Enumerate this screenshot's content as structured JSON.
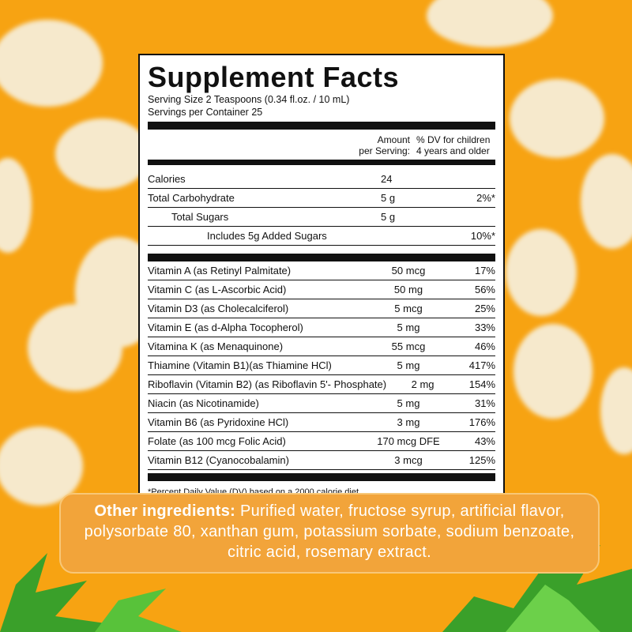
{
  "panel": {
    "title": "Supplement Facts",
    "serving_size": "Serving Size 2 Teaspoons (0.34 fl.oz. / 10 mL)",
    "servings": "Servings per Container 25",
    "header_amount": [
      "Amount",
      "per Serving:"
    ],
    "header_dv": [
      "% DV for children",
      "4 years and older"
    ],
    "main_rows": [
      {
        "name": "Calories",
        "amount": "24"
      },
      {
        "name": "Total Carbohydrate",
        "amount": "5 g",
        "dv": "2%*"
      },
      {
        "name": "Total Sugars",
        "amount": "5 g"
      },
      {
        "name": "Includes 5g Added Sugars",
        "dv": "10%*"
      }
    ],
    "vitamin_rows": [
      {
        "name": "Vitamin A (as Retinyl Palmitate)",
        "amount": "50 mcg",
        "dv": "17%"
      },
      {
        "name": "Vitamin C (as L-Ascorbic Acid)",
        "amount": "50 mg",
        "dv": "56%"
      },
      {
        "name": "Vitamin D3 (as Cholecalciferol)",
        "amount": "5 mcg",
        "dv": "25%"
      },
      {
        "name": "Vitamin E (as d-Alpha Tocopherol)",
        "amount": "5 mg",
        "dv": "33%"
      },
      {
        "name": "Vitamina K (as Menaquinone)",
        "amount": "55 mcg",
        "dv": "46%"
      },
      {
        "name": "Thiamine (Vitamin B1)(as Thiamine HCl)",
        "amount": "5 mg",
        "dv": "417%"
      },
      {
        "name": "Riboflavin (Vitamin B2) (as Riboflavin 5'- Phosphate)",
        "amount": "2 mg",
        "dv": "154%"
      },
      {
        "name": "Niacin (as Nicotinamide)",
        "amount": "5 mg",
        "dv": "31%"
      },
      {
        "name": "Vitamin B6 (as Pyridoxine HCl)",
        "amount": "3 mg",
        "dv": "176%"
      },
      {
        "name": "Folate (as 100 mcg Folic Acid)",
        "amount": "170 mcg DFE",
        "dv": "43%"
      },
      {
        "name": "Vitamin B12 (Cyanocobalamin)",
        "amount": "3 mcg",
        "dv": "125%"
      }
    ],
    "footnote": "*Percent Daily Value (DV) based on a 2000 calorie diet."
  },
  "ingredients": {
    "label": "Other ingredients:",
    "text": "Purified water, fructose syrup, artificial flavor, polysorbate 80, xanthan gum, potassium sorbate, sodium benzoate, citric acid, rosemary extract."
  }
}
